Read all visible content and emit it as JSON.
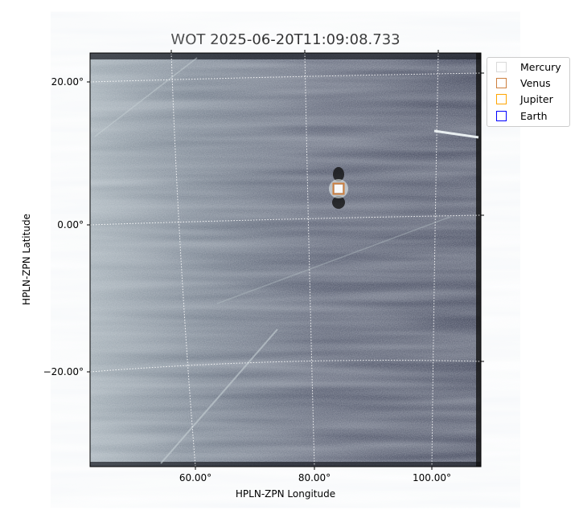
{
  "chart_data": {
    "type": "image",
    "title": "WOT 2025-06-20T11:09:08.733",
    "xlabel": "HPLN-ZPN Longitude",
    "ylabel": "HPLN-ZPN Latitude",
    "x_ticks": [
      "60.00°",
      "80.00°",
      "100.00°"
    ],
    "y_ticks": [
      "20.00°",
      "0.00°",
      "−20.00°"
    ],
    "grid": true,
    "colormap": "bone-like grayscale",
    "legend_placement": "outside-top-right",
    "legend": [
      {
        "name": "Mercury",
        "color": "#d9d9d9"
      },
      {
        "name": "Venus",
        "color": "#cd7f3f"
      },
      {
        "name": "Jupiter",
        "color": "#ffa500"
      },
      {
        "name": "Earth",
        "color": "#0000ff"
      }
    ],
    "markers": [
      {
        "name": "Mercury",
        "lon": 84,
        "lat": 5
      },
      {
        "name": "Venus",
        "lon": 84,
        "lat": 5
      },
      {
        "name": "Jupiter",
        "lon": 84,
        "lat": 5
      },
      {
        "name": "Earth",
        "lon": 84,
        "lat": 5
      }
    ]
  }
}
